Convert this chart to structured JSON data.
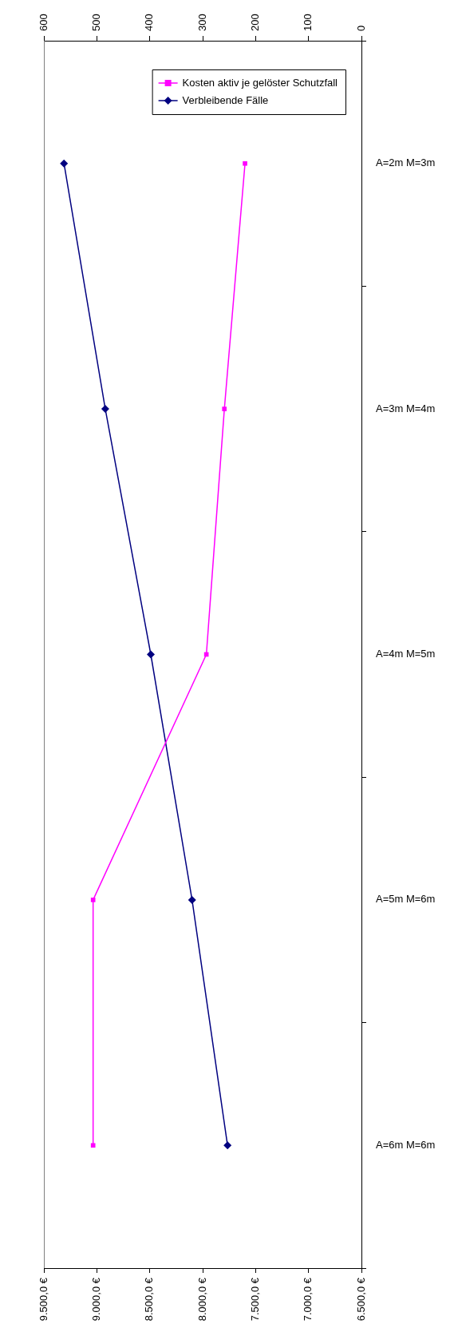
{
  "chart_data": {
    "type": "line",
    "orientation": "horizontal",
    "categories": [
      "A=2m M=3m",
      "A=3m M=4m",
      "A=4m M=5m",
      "A=5m M=6m",
      "A=6m M=6m"
    ],
    "series": [
      {
        "name": "Kosten aktiv je gelöster Schutzfall",
        "color": "#ff00ff",
        "marker": "square",
        "values": [
          7600,
          7795,
          7965,
          9035,
          9035
        ]
      },
      {
        "name": "Verbleibende Fälle",
        "color": "#000080",
        "marker": "diamond",
        "axis": "x2",
        "values": [
          562,
          484,
          398,
          320,
          253
        ]
      }
    ],
    "xlim": [
      9500,
      6500
    ],
    "xticks": [
      {
        "value": 9500,
        "label": "9.500,0 €"
      },
      {
        "value": 9000,
        "label": "9.000,0 €"
      },
      {
        "value": 8500,
        "label": "8.500,0 €"
      },
      {
        "value": 8000,
        "label": "8.000,0 €"
      },
      {
        "value": 7500,
        "label": "7.500,0 €"
      },
      {
        "value": 7000,
        "label": "7.000,0 €"
      },
      {
        "value": 6500,
        "label": "6.500,0 €"
      }
    ],
    "x2lim": [
      600,
      0
    ],
    "x2ticks": [
      600,
      500,
      400,
      300,
      200,
      100,
      0
    ],
    "grid": false,
    "legend": "top right",
    "line_style": "solid"
  }
}
